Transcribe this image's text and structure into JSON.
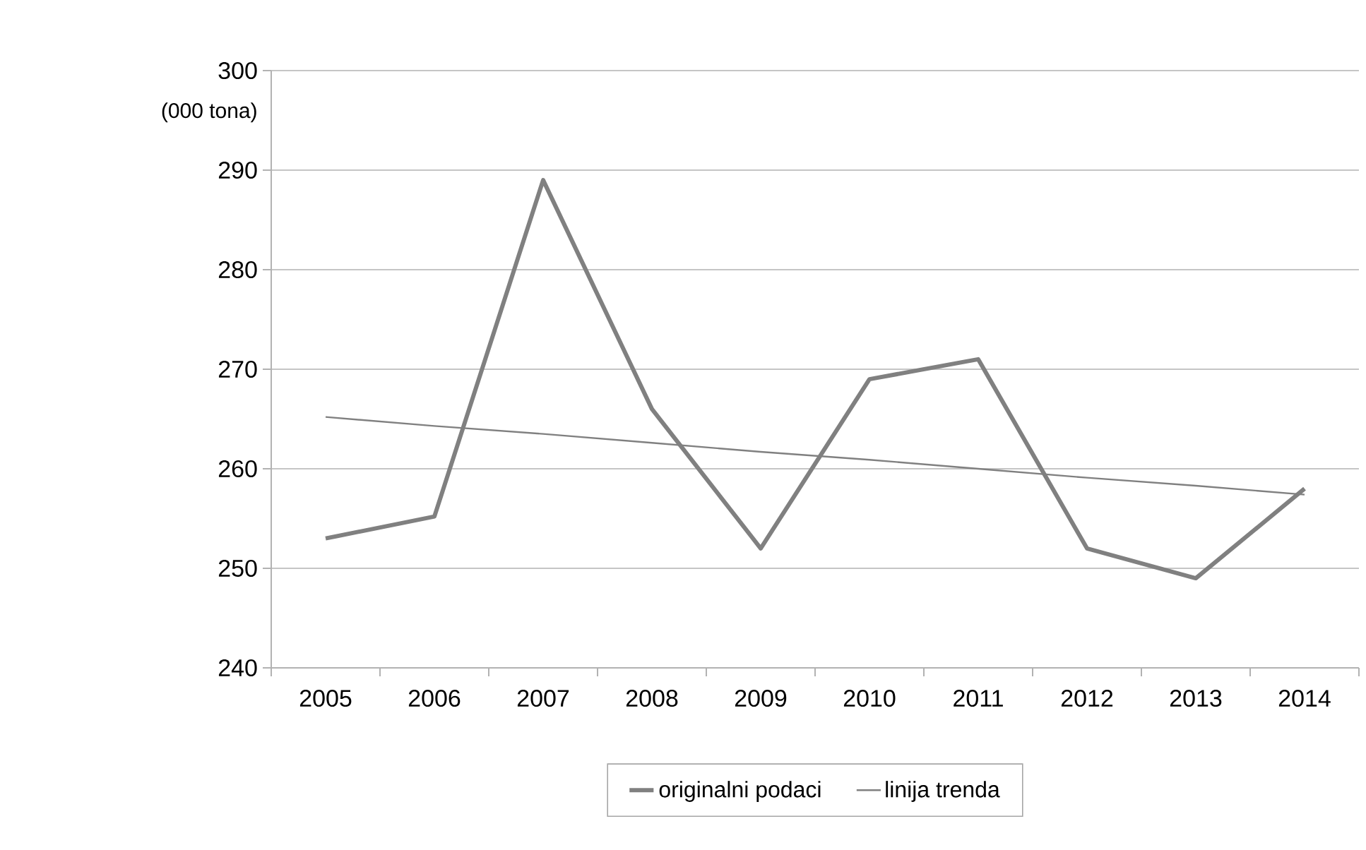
{
  "chart_data": {
    "type": "line",
    "ylabel": "(000 tona)",
    "categories": [
      "2005",
      "2006",
      "2007",
      "2008",
      "2009",
      "2010",
      "2011",
      "2012",
      "2013",
      "2014"
    ],
    "series": [
      {
        "name": "originalni podaci",
        "color": "#808080",
        "values": [
          253,
          255.2,
          289,
          266,
          252,
          269,
          271,
          252,
          249,
          258
        ]
      },
      {
        "name": "linija trenda",
        "color": "#808080",
        "values": [
          265.2,
          264.3,
          263.5,
          262.6,
          261.7,
          260.9,
          260.0,
          259.1,
          258.3,
          257.4
        ]
      }
    ],
    "ylim": [
      240,
      300
    ],
    "yticks": [
      240,
      250,
      260,
      270,
      280,
      290,
      300
    ],
    "grid": "y",
    "legend": "bottom",
    "marker": "none",
    "line_style": "solid"
  }
}
